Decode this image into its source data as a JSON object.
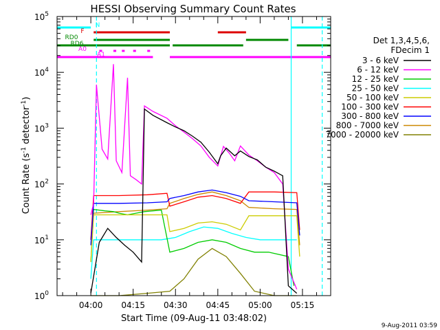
{
  "chart_data": {
    "type": "line",
    "title": "HESSI Observing Summary Count Rates",
    "xlabel": "Start Time (09-Aug-11 03:48:02)",
    "ylabel": "Count Rate (s",
    "ylabel_sup": "-1",
    "ylabel_rest": " detector",
    "ylabel_sup2": "-1",
    "ylabel_close": ")",
    "y_scale": "log",
    "ylim": [
      1,
      100000
    ],
    "y_ticks": [
      {
        "value": 1,
        "label": "10",
        "exp": "0"
      },
      {
        "value": 10,
        "label": "10",
        "exp": "1"
      },
      {
        "value": 100,
        "label": "10",
        "exp": "2"
      },
      {
        "value": 1000,
        "label": "10",
        "exp": "3"
      },
      {
        "value": 10000,
        "label": "10",
        "exp": "4"
      },
      {
        "value": 100000,
        "label": "10",
        "exp": "5"
      }
    ],
    "xlim": [
      "03:48:02",
      "05:25:00"
    ],
    "x_ticks": [
      "04:00",
      "04:15",
      "04:30",
      "04:45",
      "05:00",
      "05:15"
    ],
    "legend_header": [
      "Det 1,3,4,5,6,",
      "FDecim 1"
    ],
    "legend_placement": "right",
    "series": [
      {
        "name": "3 - 6 keV",
        "color": "#000000",
        "points": [
          [
            "04:00",
            1.1
          ],
          [
            "04:03",
            9
          ],
          [
            "04:06",
            16
          ],
          [
            "04:09",
            11
          ],
          [
            "04:12",
            8
          ],
          [
            "04:15",
            6
          ],
          [
            "04:18",
            4
          ],
          [
            "04:19",
            2200
          ],
          [
            "04:22",
            1700
          ],
          [
            "04:27",
            1250
          ],
          [
            "04:30",
            1050
          ],
          [
            "04:33",
            900
          ],
          [
            "04:36",
            720
          ],
          [
            "04:39",
            560
          ],
          [
            "04:42",
            370
          ],
          [
            "04:45",
            230
          ],
          [
            "04:46",
            320
          ],
          [
            "04:48",
            440
          ],
          [
            "04:51",
            320
          ],
          [
            "04:53",
            390
          ],
          [
            "04:56",
            310
          ],
          [
            "04:59",
            270
          ],
          [
            "05:02",
            200
          ],
          [
            "05:05",
            170
          ],
          [
            "05:08",
            140
          ],
          [
            "05:10",
            1.5
          ],
          [
            "05:13",
            1.1
          ]
        ]
      },
      {
        "name": "6 - 12 keV",
        "color": "#ff00ff",
        "points": [
          [
            "04:00",
            28
          ],
          [
            "04:01",
            45
          ],
          [
            "04:02",
            6000
          ],
          [
            "04:04",
            420
          ],
          [
            "04:06",
            280
          ],
          [
            "04:08",
            14000
          ],
          [
            "04:09",
            260
          ],
          [
            "04:11",
            160
          ],
          [
            "04:13",
            8000
          ],
          [
            "04:14",
            140
          ],
          [
            "04:16",
            120
          ],
          [
            "04:18",
            100
          ],
          [
            "04:19",
            2500
          ],
          [
            "04:22",
            2000
          ],
          [
            "04:27",
            1500
          ],
          [
            "04:30",
            1100
          ],
          [
            "04:33",
            850
          ],
          [
            "04:36",
            650
          ],
          [
            "04:39",
            480
          ],
          [
            "04:42",
            300
          ],
          [
            "04:45",
            210
          ],
          [
            "04:47",
            470
          ],
          [
            "04:49",
            360
          ],
          [
            "04:51",
            260
          ],
          [
            "04:53",
            480
          ],
          [
            "04:56",
            330
          ],
          [
            "04:59",
            260
          ],
          [
            "05:02",
            200
          ],
          [
            "05:05",
            160
          ],
          [
            "05:08",
            100
          ],
          [
            "05:10",
            3
          ],
          [
            "05:13",
            1.3
          ]
        ]
      },
      {
        "name": "12 - 25 keV",
        "color": "#00cc00",
        "points": [
          [
            "04:00",
            10
          ],
          [
            "04:01",
            35
          ],
          [
            "04:05",
            33
          ],
          [
            "04:08",
            32
          ],
          [
            "04:10",
            30
          ],
          [
            "04:13",
            28
          ],
          [
            "04:16",
            30
          ],
          [
            "04:19",
            32
          ],
          [
            "04:25",
            34
          ],
          [
            "04:28",
            6
          ],
          [
            "04:33",
            7
          ],
          [
            "04:38",
            9
          ],
          [
            "04:43",
            10
          ],
          [
            "04:48",
            9
          ],
          [
            "04:53",
            7
          ],
          [
            "04:58",
            6
          ],
          [
            "05:03",
            6
          ],
          [
            "05:10",
            5
          ],
          [
            "05:12",
            1.5
          ]
        ]
      },
      {
        "name": "25 - 50 keV",
        "color": "#00ffff",
        "points": [
          [
            "04:00",
            2
          ],
          [
            "04:01",
            10
          ],
          [
            "04:05",
            10
          ],
          [
            "04:10",
            10
          ],
          [
            "04:15",
            10
          ],
          [
            "04:20",
            10
          ],
          [
            "04:25",
            10
          ],
          [
            "04:30",
            11
          ],
          [
            "04:35",
            14
          ],
          [
            "04:40",
            17
          ],
          [
            "04:45",
            16
          ],
          [
            "04:50",
            13
          ],
          [
            "04:55",
            11
          ],
          [
            "05:00",
            10
          ],
          [
            "05:05",
            10
          ],
          [
            "05:10",
            10
          ],
          [
            "05:13",
            10
          ]
        ]
      },
      {
        "name": "50 - 100 keV",
        "color": "#cccc00",
        "points": [
          [
            "04:00",
            4
          ],
          [
            "04:01",
            28
          ],
          [
            "04:10",
            28
          ],
          [
            "04:20",
            28
          ],
          [
            "04:27",
            28
          ],
          [
            "04:28",
            14
          ],
          [
            "04:33",
            16
          ],
          [
            "04:38",
            20
          ],
          [
            "04:43",
            21
          ],
          [
            "04:48",
            19
          ],
          [
            "04:53",
            15
          ],
          [
            "04:56",
            27
          ],
          [
            "05:05",
            27
          ],
          [
            "05:13",
            27
          ],
          [
            "05:14",
            5
          ]
        ]
      },
      {
        "name": "100 - 300 keV",
        "color": "#ff0000",
        "points": [
          [
            "04:00",
            10
          ],
          [
            "04:01",
            62
          ],
          [
            "04:10",
            62
          ],
          [
            "04:20",
            64
          ],
          [
            "04:27",
            68
          ],
          [
            "04:28",
            40
          ],
          [
            "04:33",
            48
          ],
          [
            "04:38",
            58
          ],
          [
            "04:43",
            62
          ],
          [
            "04:48",
            55
          ],
          [
            "04:53",
            45
          ],
          [
            "04:56",
            72
          ],
          [
            "05:05",
            72
          ],
          [
            "05:13",
            70
          ],
          [
            "05:14",
            15
          ]
        ]
      },
      {
        "name": "300 - 800 keV",
        "color": "#0000ff",
        "points": [
          [
            "04:00",
            8
          ],
          [
            "04:01",
            45
          ],
          [
            "04:10",
            45
          ],
          [
            "04:20",
            46
          ],
          [
            "04:27",
            48
          ],
          [
            "04:28",
            55
          ],
          [
            "04:33",
            62
          ],
          [
            "04:38",
            72
          ],
          [
            "04:43",
            78
          ],
          [
            "04:48",
            70
          ],
          [
            "04:53",
            60
          ],
          [
            "04:56",
            50
          ],
          [
            "05:05",
            48
          ],
          [
            "05:13",
            46
          ],
          [
            "05:14",
            12
          ]
        ]
      },
      {
        "name": "800 - 7000 keV",
        "color": "#cc8800",
        "points": [
          [
            "04:00",
            4
          ],
          [
            "04:01",
            30
          ],
          [
            "04:10",
            32
          ],
          [
            "04:20",
            34
          ],
          [
            "04:27",
            36
          ],
          [
            "04:28",
            45
          ],
          [
            "04:33",
            55
          ],
          [
            "04:38",
            65
          ],
          [
            "04:43",
            72
          ],
          [
            "04:48",
            62
          ],
          [
            "04:53",
            50
          ],
          [
            "04:56",
            38
          ],
          [
            "05:05",
            36
          ],
          [
            "05:13",
            35
          ],
          [
            "05:14",
            8
          ]
        ]
      },
      {
        "name": "7000 - 20000 keV",
        "color": "#808000",
        "points": [
          [
            "04:00",
            1
          ],
          [
            "04:10",
            1
          ],
          [
            "04:20",
            1.1
          ],
          [
            "04:28",
            1.2
          ],
          [
            "04:33",
            2
          ],
          [
            "04:38",
            4.5
          ],
          [
            "04:43",
            7
          ],
          [
            "04:48",
            5
          ],
          [
            "04:53",
            2.5
          ],
          [
            "04:58",
            1.2
          ],
          [
            "05:05",
            1
          ],
          [
            "05:13",
            1
          ]
        ]
      }
    ],
    "flag_bars": [
      {
        "label": "N",
        "color": "#00ffff",
        "segments": [
          [
            "03:48",
            "04:00"
          ],
          [
            "05:11",
            "05:25"
          ]
        ]
      },
      {
        "label": "F",
        "color": "#dd0000",
        "segments": [
          [
            "04:01",
            "04:28"
          ],
          [
            "04:45",
            "04:55"
          ]
        ]
      },
      {
        "label": "RD0",
        "color": "#008800",
        "segments": [
          [
            "04:01",
            "04:28"
          ],
          [
            "04:55",
            "05:10"
          ]
        ]
      },
      {
        "label": "RD6",
        "color": "#008800",
        "segments": [
          [
            "03:48",
            "04:28"
          ],
          [
            "04:29",
            "04:54"
          ],
          [
            "05:13",
            "05:25"
          ]
        ]
      },
      {
        "label": "A0",
        "color": "#ff00ff",
        "segments": [
          [
            "04:03",
            "04:04"
          ],
          [
            "04:08",
            "04:09"
          ],
          [
            "04:11",
            "04:12"
          ],
          [
            "04:15",
            "04:16"
          ],
          [
            "04:20",
            "04:21"
          ]
        ]
      },
      {
        "label": "A1",
        "color": "#ff00ff",
        "segments": [
          [
            "03:48",
            "04:22"
          ],
          [
            "04:28",
            "05:25"
          ]
        ]
      }
    ],
    "vertical_markers": [
      {
        "time": "04:02",
        "color": "#00ffff",
        "style": "dashed"
      },
      {
        "time": "05:11",
        "color": "#00ffff",
        "style": "solid"
      },
      {
        "time": "05:22",
        "color": "#00ffff",
        "style": "dashed"
      }
    ]
  },
  "footer": {
    "timestamp": "9-Aug-2011 03:59"
  }
}
